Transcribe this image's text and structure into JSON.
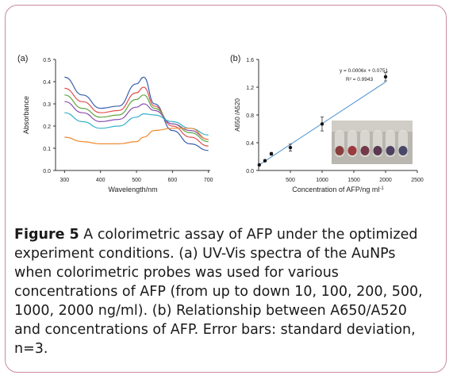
{
  "caption": {
    "label": "Figure 5",
    "text": " A colorimetric assay of AFP under the optimized experiment conditions. (a) UV-Vis spectra of the AuNPs when colorimetric probes was used for various concentrations of AFP (from up to down 10, 100, 200, 500, 1000, 2000 ng/ml). (b) Relationship between A650/A520 and concentrations of AFP. Error bars: standard deviation, n=3."
  },
  "chart_data": [
    {
      "type": "line",
      "panel_label": "(a)",
      "xlabel": "Wavelength/nm",
      "ylabel": "Absorbance",
      "xlim": [
        275,
        705
      ],
      "ylim": [
        0,
        0.5
      ],
      "xticks": [
        300,
        400,
        500,
        600,
        700
      ],
      "yticks": [
        0.0,
        0.1,
        0.2,
        0.3,
        0.4,
        0.5
      ],
      "x": [
        300,
        350,
        400,
        450,
        500,
        520,
        550,
        600,
        650,
        700
      ],
      "series": [
        {
          "color": "#3a5dae",
          "values": [
            0.42,
            0.34,
            0.28,
            0.29,
            0.39,
            0.42,
            0.3,
            0.18,
            0.12,
            0.09
          ]
        },
        {
          "color": "#e05050",
          "values": [
            0.37,
            0.31,
            0.26,
            0.27,
            0.35,
            0.375,
            0.29,
            0.2,
            0.15,
            0.11
          ]
        },
        {
          "color": "#5aa640",
          "values": [
            0.34,
            0.28,
            0.24,
            0.25,
            0.32,
            0.34,
            0.28,
            0.21,
            0.17,
            0.13
          ]
        },
        {
          "color": "#8a50b0",
          "values": [
            0.31,
            0.26,
            0.22,
            0.23,
            0.285,
            0.3,
            0.27,
            0.21,
            0.18,
            0.14
          ]
        },
        {
          "color": "#35b0c8",
          "values": [
            0.26,
            0.22,
            0.19,
            0.2,
            0.24,
            0.255,
            0.25,
            0.22,
            0.19,
            0.16
          ]
        },
        {
          "color": "#f08a30",
          "values": [
            0.15,
            0.13,
            0.12,
            0.12,
            0.13,
            0.15,
            0.18,
            0.19,
            0.19,
            0.14
          ]
        }
      ]
    },
    {
      "type": "scatter",
      "panel_label": "(b)",
      "xlabel": "Concentration of AFP/ng ml",
      "xlabel_sup": "-1",
      "ylabel": "A650 /A520",
      "xlim": [
        0,
        2500
      ],
      "ylim": [
        0,
        1.6
      ],
      "xticks": [
        500,
        1000,
        1500,
        2000,
        2500
      ],
      "yticks": [
        0.0,
        0.4,
        0.8,
        1.2,
        1.6
      ],
      "x": [
        10,
        100,
        200,
        500,
        1000,
        2000
      ],
      "y": [
        0.08,
        0.14,
        0.24,
        0.33,
        0.67,
        1.35
      ],
      "err": [
        0.01,
        0.015,
        0.02,
        0.05,
        0.1,
        0.06
      ],
      "fit": {
        "slope": 0.0006,
        "intercept": 0.0751,
        "equation": "y = 0.0006x + 0.0751",
        "r2": "R² = 0.9943",
        "color": "#4a8fd0"
      },
      "inset_colors": [
        "#8a3f3f",
        "#9b3a3f",
        "#743a4a",
        "#5a3850",
        "#4e4060",
        "#4a4868"
      ]
    }
  ]
}
